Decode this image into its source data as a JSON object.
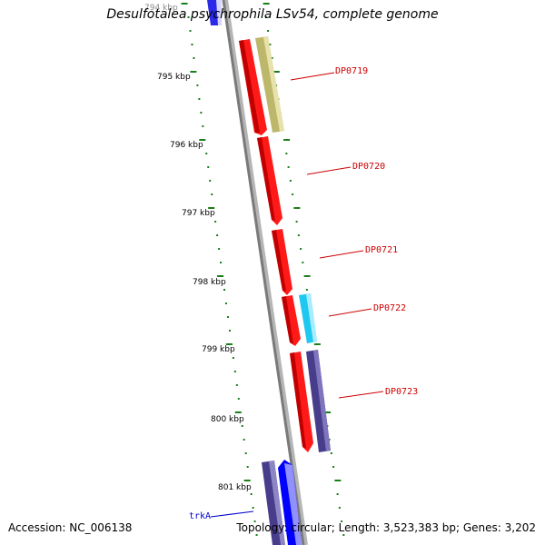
{
  "title": "Desulfotalea psychrophila LSv54, complete genome",
  "footer": {
    "accession": "Accession: NC_006138",
    "topology": "Topology: circular; Length: 3,523,383 bp; Genes: 3,202"
  },
  "colors": {
    "backbone": "#8a8a8a",
    "tick": "#1a7f1a",
    "red_gene": "#ff1a1a",
    "olive_gene": "#bdb76b",
    "cyan_gene": "#1ec8f0",
    "navy_gene": "#483d8b",
    "blue_gene": "#0000ff",
    "label_red": "#cc0000",
    "label_blue": "#0000cc"
  },
  "scale_labels": [
    "794 kbp",
    "795 kbp",
    "796 kbp",
    "797 kbp",
    "798 kbp",
    "799 kbp",
    "800 kbp",
    "801 kbp"
  ],
  "gene_labels": [
    {
      "text": "DP0719",
      "color": "#cc0000"
    },
    {
      "text": "DP0720",
      "color": "#cc0000"
    },
    {
      "text": "DP0721",
      "color": "#cc0000"
    },
    {
      "text": "DP0722",
      "color": "#cc0000"
    },
    {
      "text": "DP0723",
      "color": "#cc0000"
    },
    {
      "text": "trkA",
      "color": "#0000cc"
    }
  ]
}
